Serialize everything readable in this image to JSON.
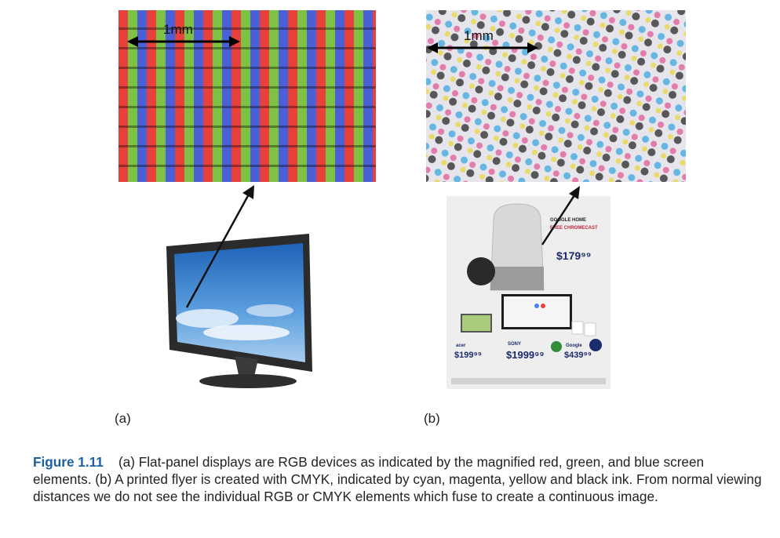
{
  "panel_a": {
    "scale_label": "1mm",
    "label": "(a)"
  },
  "panel_b": {
    "scale_label": "1mm",
    "label": "(b)",
    "flyer": {
      "header_line1": "GOOGLE HOME",
      "header_line2": "FREE CHROMECAST",
      "price_main": "$179⁹⁹",
      "price_1": "$199⁹⁹",
      "price_2": "$1999⁹⁹",
      "price_3": "$439⁹⁹",
      "brand_1": "acer",
      "brand_2": "SONY",
      "brand_3": "Google"
    }
  },
  "caption": {
    "figure_label": "Figure 1.11",
    "text": "(a) Flat-panel displays are RGB devices as indicated by the magnified red, green, and blue screen elements. (b) A printed flyer is created with CMYK, indicated by cyan, magenta, yellow and black ink. From normal viewing distances we do not see the individual RGB or CMYK elements which fuse to create a continuous image."
  },
  "colors": {
    "figure_label": "#1a5fa8",
    "rgb_red": "#e8403a",
    "rgb_green": "#7dc242",
    "rgb_blue": "#4b5fd6",
    "cmyk_cyan": "#3aa7e0",
    "cmyk_magenta": "#e0508f",
    "cmyk_yellow": "#e8d84a",
    "cmyk_black": "#333333"
  }
}
